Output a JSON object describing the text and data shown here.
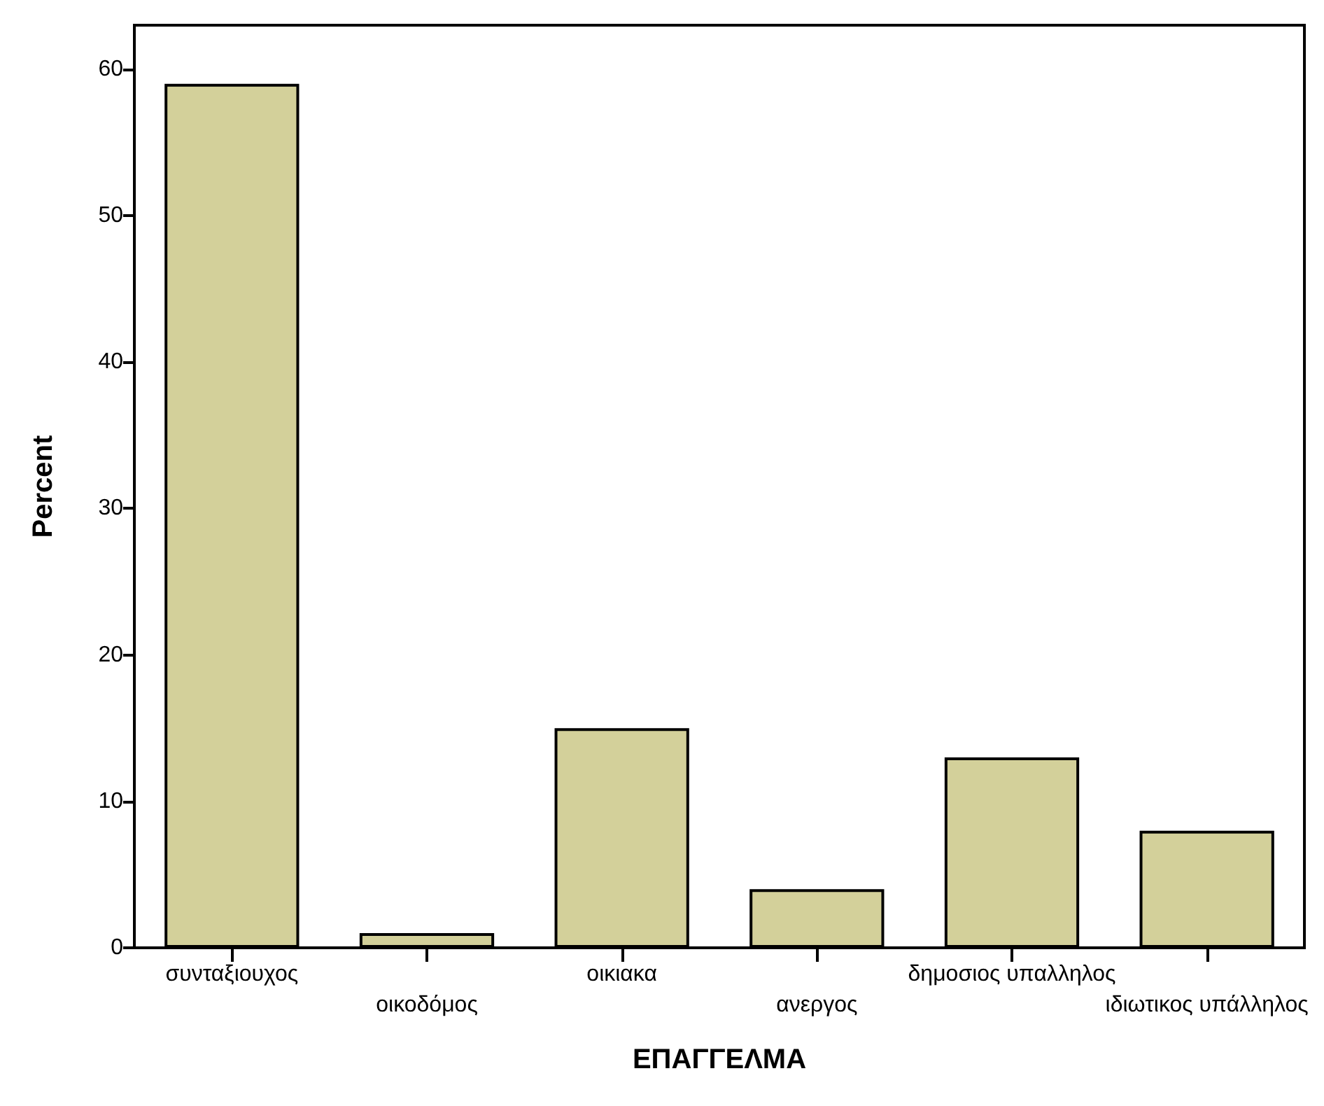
{
  "chart_data": {
    "type": "bar",
    "xlabel": "ΕΠΑΓΓΕΛΜΑ",
    "ylabel": "Percent",
    "categories": [
      "συνταξιουχος",
      "οικοδόμος",
      "οικιακα",
      "ανεργος",
      "δημοσιος υπαλληλος",
      "ιδιωτικος υπάλληλος"
    ],
    "values": [
      59,
      1,
      15,
      4,
      13,
      8
    ],
    "color": "#d3d09a",
    "ylim": [
      0,
      63
    ],
    "yticks": [
      0,
      10,
      20,
      30,
      40,
      50,
      60
    ],
    "grid": false
  }
}
